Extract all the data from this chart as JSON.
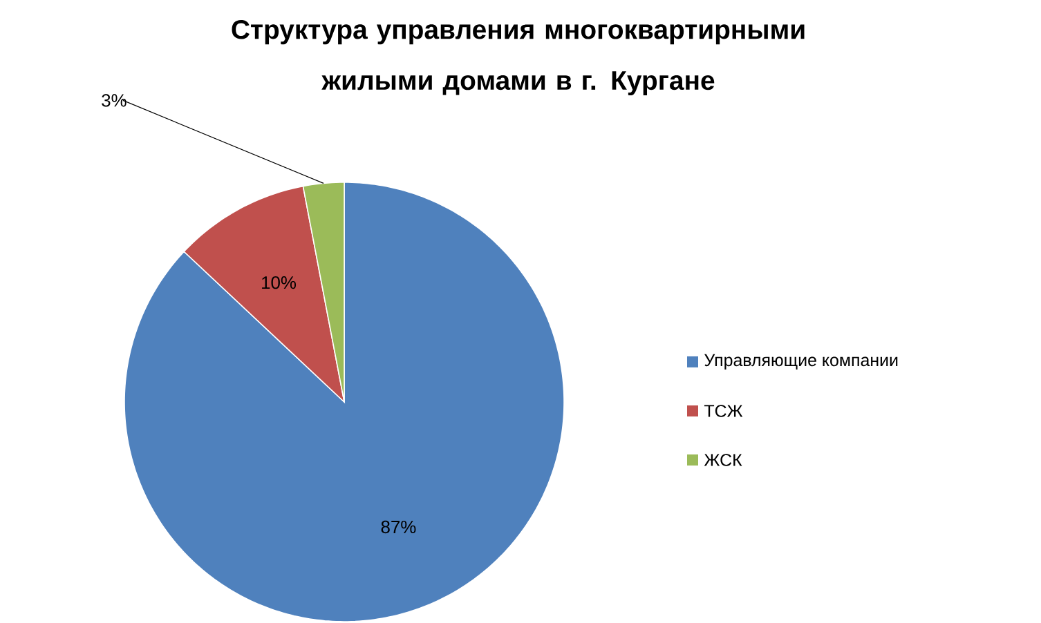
{
  "chart_data": {
    "type": "pie",
    "title": "Структура управления многоквартирными жилыми домами в г. Кургане",
    "categories": [
      "Управляющие компании",
      "ТСЖ",
      "ЖСК"
    ],
    "values": [
      87,
      10,
      3
    ],
    "colors": [
      "#4f81bd",
      "#c0504d",
      "#9bbb59"
    ],
    "value_labels": [
      "87%",
      "10%",
      "3%"
    ],
    "legend": "right"
  }
}
